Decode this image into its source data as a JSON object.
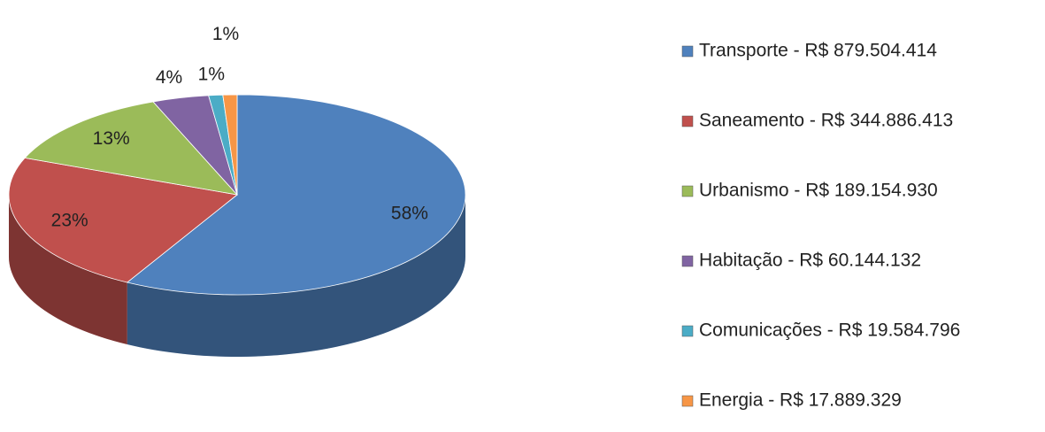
{
  "chart_data": {
    "type": "pie",
    "categories": [
      "Transporte - R$ 879.504.414",
      "Saneamento - R$ 344.886.413",
      "Urbanismo - R$ 189.154.930",
      "Habitação - R$ 60.144.132",
      "Comunicações - R$ 19.584.796",
      "Energia - R$ 17.889.329"
    ],
    "values": [
      58,
      23,
      13,
      4,
      1,
      1
    ],
    "value_labels": [
      "58%",
      "23%",
      "13%",
      "4%",
      "1%",
      "1%"
    ],
    "colors": [
      "#4f81bd",
      "#c0504d",
      "#9bbb59",
      "#8064a2",
      "#4bacc6",
      "#f79646"
    ],
    "legend": "right"
  }
}
